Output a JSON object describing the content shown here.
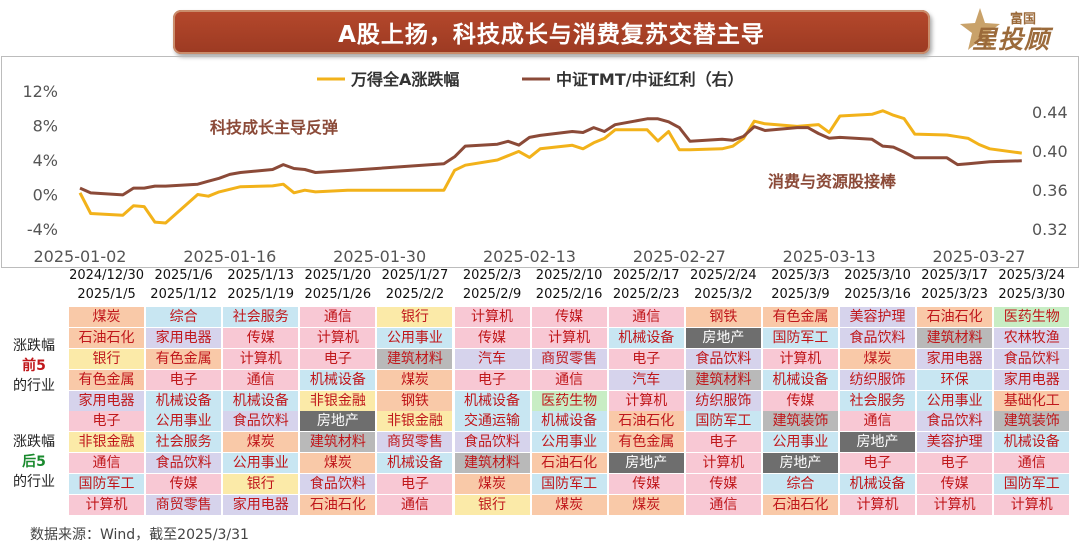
{
  "title": "A股上扬，科技成长与消费复苏交替主导",
  "logo": {
    "small": "富国",
    "big": "星投顾"
  },
  "source": "数据来源：Wind，截至2025/3/31",
  "chart_data": {
    "type": "line",
    "x_ticks": [
      "2025-01-02",
      "2025-01-16",
      "2025-01-30",
      "2025-02-13",
      "2025-02-27",
      "2025-03-13",
      "2025-03-27"
    ],
    "y_left": {
      "ticks": [
        "12%",
        "8%",
        "4%",
        "0%",
        "-4%"
      ],
      "range": [
        -4,
        12
      ]
    },
    "y_right": {
      "ticks": [
        "0.44",
        "0.40",
        "0.36",
        "0.32"
      ],
      "range": [
        0.32,
        0.44
      ]
    },
    "legend": [
      "万得全A涨跌幅",
      "中证TMT/中证红利（右）"
    ],
    "annotations": [
      "科技成长主导反弹",
      "消费与资源股接棒"
    ],
    "series": [
      {
        "name": "万得全A涨跌幅",
        "axis": "left",
        "color": "#f2b21a",
        "x": [
          "2025-01-02",
          "2025-01-03",
          "2025-01-06",
          "2025-01-07",
          "2025-01-08",
          "2025-01-09",
          "2025-01-10",
          "2025-01-13",
          "2025-01-14",
          "2025-01-15",
          "2025-01-16",
          "2025-01-17",
          "2025-01-20",
          "2025-01-21",
          "2025-01-22",
          "2025-01-23",
          "2025-01-24",
          "2025-01-27",
          "2025-02-05",
          "2025-02-06",
          "2025-02-07",
          "2025-02-10",
          "2025-02-11",
          "2025-02-12",
          "2025-02-13",
          "2025-02-14",
          "2025-02-17",
          "2025-02-18",
          "2025-02-19",
          "2025-02-20",
          "2025-02-21",
          "2025-02-24",
          "2025-02-25",
          "2025-02-26",
          "2025-02-27",
          "2025-02-28",
          "2025-03-03",
          "2025-03-04",
          "2025-03-05",
          "2025-03-06",
          "2025-03-07",
          "2025-03-10",
          "2025-03-11",
          "2025-03-12",
          "2025-03-13",
          "2025-03-14",
          "2025-03-17",
          "2025-03-18",
          "2025-03-19",
          "2025-03-20",
          "2025-03-21",
          "2025-03-24",
          "2025-03-25",
          "2025-03-26",
          "2025-03-27",
          "2025-03-28",
          "2025-03-31"
        ],
        "values": [
          0.2,
          -2.2,
          -2.4,
          -1.3,
          -1.4,
          -3.2,
          -3.3,
          0,
          -0.2,
          0.3,
          0.6,
          0.9,
          1.0,
          1.2,
          0.2,
          0.5,
          0.3,
          0.5,
          0.5,
          2.8,
          3.4,
          4.0,
          4.5,
          5.0,
          4.3,
          5.3,
          5.7,
          5.3,
          6.0,
          6.5,
          7.5,
          7.5,
          6.2,
          7.3,
          5.2,
          5.2,
          5.3,
          5.6,
          6.5,
          8.5,
          8.2,
          7.9,
          8.0,
          8.1,
          7.2,
          9.1,
          9.3,
          9.7,
          9.2,
          8.8,
          7.0,
          6.9,
          6.7,
          6.5,
          5.8,
          5.3,
          4.8
        ]
      },
      {
        "name": "中证TMT/中证红利（右）",
        "axis": "right",
        "color": "#8b4a38",
        "x": [
          "2025-01-02",
          "2025-01-03",
          "2025-01-06",
          "2025-01-07",
          "2025-01-08",
          "2025-01-09",
          "2025-01-10",
          "2025-01-13",
          "2025-01-14",
          "2025-01-15",
          "2025-01-16",
          "2025-01-17",
          "2025-01-20",
          "2025-01-21",
          "2025-01-22",
          "2025-01-23",
          "2025-01-24",
          "2025-01-27",
          "2025-02-05",
          "2025-02-06",
          "2025-02-07",
          "2025-02-10",
          "2025-02-11",
          "2025-02-12",
          "2025-02-13",
          "2025-02-14",
          "2025-02-17",
          "2025-02-18",
          "2025-02-19",
          "2025-02-20",
          "2025-02-21",
          "2025-02-24",
          "2025-02-25",
          "2025-02-26",
          "2025-02-27",
          "2025-02-28",
          "2025-03-03",
          "2025-03-04",
          "2025-03-05",
          "2025-03-06",
          "2025-03-07",
          "2025-03-10",
          "2025-03-11",
          "2025-03-12",
          "2025-03-13",
          "2025-03-14",
          "2025-03-17",
          "2025-03-18",
          "2025-03-19",
          "2025-03-20",
          "2025-03-21",
          "2025-03-24",
          "2025-03-25",
          "2025-03-26",
          "2025-03-27",
          "2025-03-28",
          "2025-03-31"
        ],
        "values": [
          0.362,
          0.357,
          0.355,
          0.362,
          0.362,
          0.364,
          0.364,
          0.366,
          0.369,
          0.372,
          0.376,
          0.378,
          0.381,
          0.386,
          0.382,
          0.381,
          0.378,
          0.38,
          0.387,
          0.394,
          0.405,
          0.407,
          0.41,
          0.406,
          0.414,
          0.416,
          0.42,
          0.419,
          0.424,
          0.42,
          0.427,
          0.433,
          0.433,
          0.43,
          0.424,
          0.41,
          0.412,
          0.411,
          0.415,
          0.425,
          0.421,
          0.424,
          0.424,
          0.418,
          0.413,
          0.414,
          0.412,
          0.405,
          0.404,
          0.399,
          0.393,
          0.393,
          0.386,
          0.387,
          0.388,
          0.389,
          0.39
        ]
      }
    ]
  },
  "table": {
    "row_labels": [
      {
        "pre": "涨跌幅",
        "hl": "前5",
        "post": "的行业",
        "color": "#c0171b"
      },
      {
        "pre": "涨跌幅",
        "hl": "后5",
        "post": "的行业",
        "color": "#1a8a2e"
      }
    ],
    "weeks": [
      {
        "start": "2024/12/30",
        "end": "2025/1/5",
        "top": [
          "煤炭",
          "石油石化",
          "银行",
          "有色金属",
          "家用电器"
        ],
        "bottom": [
          "电子",
          "非银金融",
          "通信",
          "国防军工",
          "计算机"
        ]
      },
      {
        "start": "2025/1/6",
        "end": "2025/1/12",
        "top": [
          "综合",
          "家用电器",
          "有色金属",
          "电子",
          "机械设备"
        ],
        "bottom": [
          "公用事业",
          "社会服务",
          "食品饮料",
          "传媒",
          "商贸零售"
        ]
      },
      {
        "start": "2025/1/13",
        "end": "2025/1/19",
        "top": [
          "社会服务",
          "传媒",
          "计算机",
          "通信",
          "机械设备"
        ],
        "bottom": [
          "食品饮料",
          "煤炭",
          "公用事业",
          "银行",
          "家用电器"
        ]
      },
      {
        "start": "2025/1/20",
        "end": "2025/1/26",
        "top": [
          "通信",
          "计算机",
          "电子",
          "机械设备",
          "非银金融"
        ],
        "bottom": [
          "房地产",
          "建筑材料",
          "煤炭",
          "食品饮料",
          "石油石化"
        ]
      },
      {
        "start": "2025/1/27",
        "end": "2025/2/2",
        "top": [
          "银行",
          "公用事业",
          "建筑材料",
          "煤炭",
          "钢铁"
        ],
        "bottom": [
          "非银金融",
          "商贸零售",
          "机械设备",
          "电子",
          "通信"
        ]
      },
      {
        "start": "2025/2/3",
        "end": "2025/2/9",
        "top": [
          "计算机",
          "传媒",
          "汽车",
          "电子",
          "机械设备"
        ],
        "bottom": [
          "交通运输",
          "食品饮料",
          "建筑材料",
          "煤炭",
          "银行"
        ]
      },
      {
        "start": "2025/2/10",
        "end": "2025/2/16",
        "top": [
          "传媒",
          "计算机",
          "商贸零售",
          "通信",
          "医药生物"
        ],
        "bottom": [
          "机械设备",
          "公用事业",
          "石油石化",
          "国防军工",
          "煤炭"
        ]
      },
      {
        "start": "2025/2/17",
        "end": "2025/2/23",
        "top": [
          "通信",
          "机械设备",
          "电子",
          "汽车",
          "计算机"
        ],
        "bottom": [
          "石油石化",
          "有色金属",
          "房地产",
          "传媒",
          "煤炭"
        ]
      },
      {
        "start": "2025/2/24",
        "end": "2025/3/2",
        "top": [
          "钢铁",
          "房地产",
          "食品饮料",
          "建筑材料",
          "纺织服饰"
        ],
        "bottom": [
          "国防军工",
          "电子",
          "计算机",
          "传媒",
          "通信"
        ]
      },
      {
        "start": "2025/3/3",
        "end": "2025/3/9",
        "top": [
          "有色金属",
          "国防军工",
          "计算机",
          "机械设备",
          "传媒"
        ],
        "bottom": [
          "建筑装饰",
          "公用事业",
          "房地产",
          "综合",
          "石油石化"
        ]
      },
      {
        "start": "2025/3/10",
        "end": "2025/3/16",
        "top": [
          "美容护理",
          "食品饮料",
          "煤炭",
          "纺织服饰",
          "社会服务"
        ],
        "bottom": [
          "通信",
          "房地产",
          "电子",
          "机械设备",
          "计算机"
        ]
      },
      {
        "start": "2025/3/17",
        "end": "2025/3/23",
        "top": [
          "石油石化",
          "建筑材料",
          "家用电器",
          "环保",
          "公用事业"
        ],
        "bottom": [
          "食品饮料",
          "美容护理",
          "电子",
          "传媒",
          "计算机"
        ]
      },
      {
        "start": "2025/3/24",
        "end": "2025/3/30",
        "top": [
          "医药生物",
          "农林牧渔",
          "食品饮料",
          "家用电器",
          "基础化工"
        ],
        "bottom": [
          "建筑装饰",
          "机械设备",
          "通信",
          "国防军工",
          "计算机"
        ]
      }
    ]
  },
  "industry_colors": {
    "煤炭": "#f9c9a8",
    "石油石化": "#f9c9a8",
    "银行": "#fbeaa8",
    "有色金属": "#f9c9a8",
    "家用电器": "#d6d3ec",
    "电子": "#f8c8d4",
    "非银金融": "#fbeaa8",
    "通信": "#f8c8d4",
    "国防军工": "#c8e6f2",
    "计算机": "#f8c8d4",
    "综合": "#c8e6f2",
    "机械设备": "#c8e6f2",
    "公用事业": "#c8e6f2",
    "社会服务": "#c8e6f2",
    "食品饮料": "#d6d3ec",
    "传媒": "#f8c8d4",
    "商贸零售": "#d6d3ec",
    "房地产": "#6e6e6e",
    "建筑材料": "#b9b9b9",
    "钢铁": "#f9c9a8",
    "汽车": "#d6d3ec",
    "交通运输": "#c8e6f2",
    "医药生物": "#c8edc4",
    "建筑装饰": "#b9b9b9",
    "纺织服饰": "#d6d3ec",
    "美容护理": "#d6d3ec",
    "环保": "#c8e6f2",
    "农林牧渔": "#d6d3ec",
    "基础化工": "#f9c9a8"
  }
}
